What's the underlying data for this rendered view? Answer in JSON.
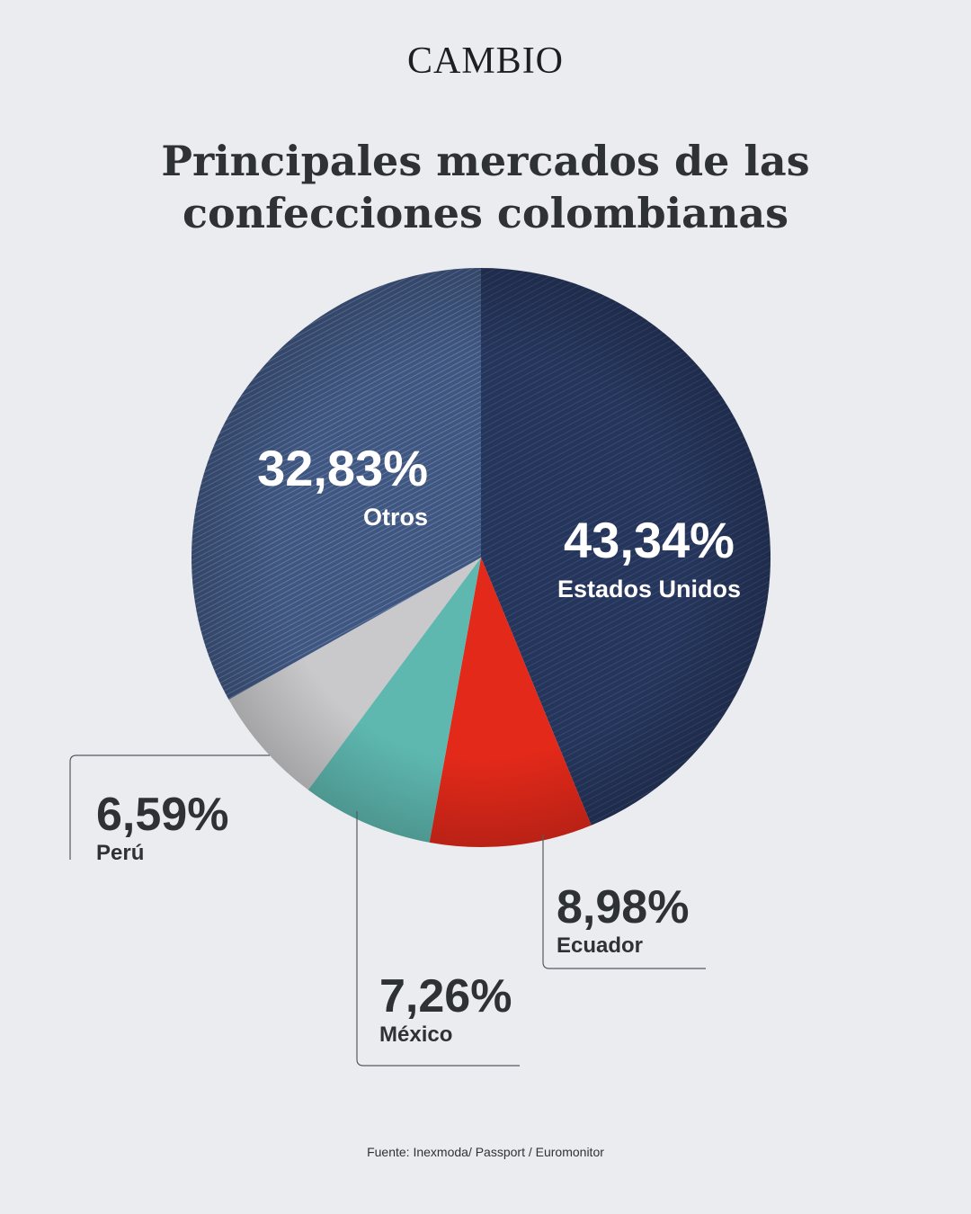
{
  "brand": "CAMBIO",
  "header": {
    "title_line1": "Principales mercados de las",
    "title_line2": "confecciones colombianas"
  },
  "chart_data": {
    "type": "pie",
    "title": "Principales mercados de las confecciones colombianas",
    "slices": [
      {
        "label": "Estados Unidos",
        "value": 43.34,
        "display": "43,34%",
        "color": "#2d3d64"
      },
      {
        "label": "Ecuador",
        "value": 8.98,
        "display": "8,98%",
        "color": "#e2291a"
      },
      {
        "label": "México",
        "value": 7.26,
        "display": "7,26%",
        "color": "#5eb8b0"
      },
      {
        "label": "Perú",
        "value": 6.59,
        "display": "6,59%",
        "color": "#c9c9cb"
      },
      {
        "label": "Otros",
        "value": 32.83,
        "display": "32,83%",
        "color": "#4a6289"
      }
    ],
    "start_angle_deg": 0,
    "direction": "clockwise"
  },
  "source": "Fuente: Inexmoda/ Passport / Euromonitor"
}
